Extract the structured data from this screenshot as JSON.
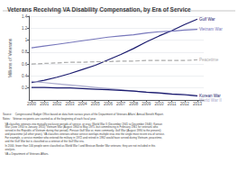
{
  "chart_data": {
    "type": "line",
    "title": "Veterans Receiving VA Disability Compensation, by Era of Service",
    "ylabel": "Millions of Veterans",
    "x": [
      2000,
      2001,
      2002,
      2003,
      2004,
      2005,
      2006,
      2007,
      2008,
      2009,
      2010,
      2011,
      2012,
      2013
    ],
    "xlim": [
      1999.8,
      2013.5
    ],
    "xticks": [
      2000,
      2001,
      2002,
      2003,
      2004,
      2005,
      2006,
      2007,
      2008,
      2009,
      2010,
      2011,
      2012,
      2013
    ],
    "ylim": [
      0,
      1.4
    ],
    "yticks": [
      0.2,
      0.4,
      0.6,
      0.8,
      1,
      1.2,
      1.4
    ],
    "grid": true,
    "series": [
      {
        "name": "Gulf War",
        "color": "#1a1a6e",
        "line_style": "solid",
        "values": [
          0.29,
          0.33,
          0.38,
          0.44,
          0.51,
          0.58,
          0.67,
          0.76,
          0.86,
          0.97,
          1.07,
          1.16,
          1.26,
          1.35
        ]
      },
      {
        "name": "Vietnam War",
        "color": "#7777bb",
        "line_style": "solid",
        "values": [
          0.87,
          0.9,
          0.93,
          0.96,
          0.99,
          1.02,
          1.05,
          1.07,
          1.09,
          1.12,
          1.14,
          1.15,
          1.17,
          1.18
        ]
      },
      {
        "name": "Peacetime",
        "color": "#aaaaaa",
        "line_style": "dashed",
        "values": [
          0.6,
          0.61,
          0.62,
          0.63,
          0.63,
          0.64,
          0.64,
          0.65,
          0.65,
          0.66,
          0.66,
          0.66,
          0.66,
          0.67
        ]
      },
      {
        "name": "World War II",
        "color": "#aaaacc",
        "line_style": "solid",
        "values": [
          0.31,
          0.29,
          0.27,
          0.25,
          0.23,
          0.21,
          0.19,
          0.17,
          0.15,
          0.13,
          0.11,
          0.09,
          0.08,
          0.06
        ]
      },
      {
        "name": "Korean War",
        "color": "#1a1a6e",
        "line_style": "solid",
        "values": [
          0.21,
          0.21,
          0.2,
          0.2,
          0.19,
          0.18,
          0.17,
          0.16,
          0.15,
          0.13,
          0.12,
          0.1,
          0.09,
          0.07
        ]
      }
    ],
    "annotations": [
      "Source:    Congressional Budget Office based on data from various years of the Department of Veterans Affairs' Annual Benefit Report.",
      "Notes:   Veteran recipients are counted as of the beginning of each fiscal year.",
      "   VA classifies veterans into mutually exclusive periods of service, or eras: World War II (December 1941 to December 1946); Korean\n   War (June 1950 to January 1955); Vietnam War (August 1964 to May 1975, but commencing in February 1961 for veterans who\n   served in the Republic of Vietnam during that period); Persian Gulf War or, more commonly, Gulf War (August 1990 to the present);\n   and peacetime (all other years). VA classifies veterans whose service overlaps multiple eras into the single most recent era of service.\n   For example, a service member who entered the military in 1972 and retired in 1992 would have served during Vietnam, peacetime,\n   and the Gulf War but is classified as a veteran of the Gulf War era.",
      "   In 2000, fewer than 100 people were classified as World War I and Mexican Border War veterans; they are not included in this\n   analysis.",
      "   VA = Department of Veterans Affairs."
    ]
  }
}
